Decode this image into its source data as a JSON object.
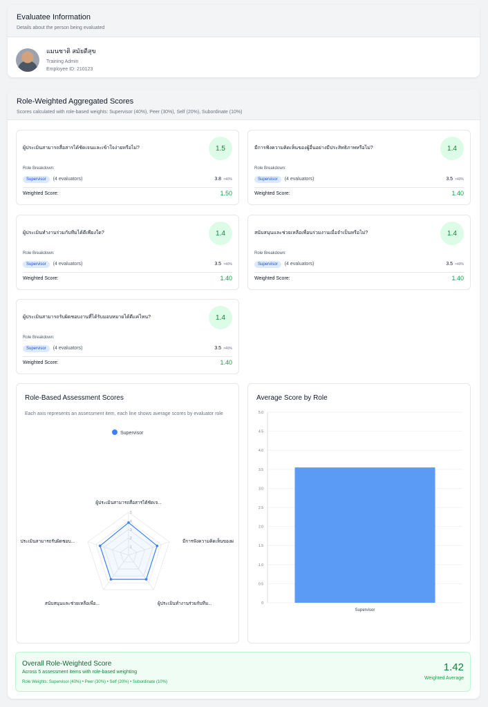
{
  "evaluatee": {
    "title": "Evaluatee Information",
    "subtitle": "Details about the person being evaluated",
    "name": "แมนชาติ สมัยดีสุข",
    "role": "Training Admin",
    "employee_id": "Employee ID: 210123"
  },
  "scores": {
    "title": "Role-Weighted Aggregated Scores",
    "subtitle": "Scores calculated with role-based weights: Supervisor (40%), Peer (30%), Self (20%), Subordinate (10%)",
    "role_breakdown_label": "Role Breakdown:",
    "weighted_label": "Weighted Score:",
    "items": [
      {
        "question": "ผู้ประเมินสามารถสื่อสารได้ชัดเจนและเข้าใจง่ายหรือไม่?",
        "score": "1.5",
        "role": "Supervisor",
        "evaluators": "(4 evaluators)",
        "avg": "3.8",
        "weight": "×40%",
        "weighted": "1.50"
      },
      {
        "question": "มีการฟังความคิดเห็นของผู้อื่นอย่างมีประสิทธิภาพหรือไม่?",
        "score": "1.4",
        "role": "Supervisor",
        "evaluators": "(4 evaluators)",
        "avg": "3.5",
        "weight": "×40%",
        "weighted": "1.40"
      },
      {
        "question": "ผู้ประเมินทำงานร่วมกับทีมได้ดีเพียงใด?",
        "score": "1.4",
        "role": "Supervisor",
        "evaluators": "(4 evaluators)",
        "avg": "3.5",
        "weight": "×40%",
        "weighted": "1.40"
      },
      {
        "question": "สนับสนุนและช่วยเหลือเพื่อนร่วมงานเมื่อจำเป็นหรือไม่?",
        "score": "1.4",
        "role": "Supervisor",
        "evaluators": "(4 evaluators)",
        "avg": "3.5",
        "weight": "×40%",
        "weighted": "1.40"
      },
      {
        "question": "ผู้ประเมินสามารถรับผิดชอบงานที่ได้รับมอบหมายได้ดีแค่ไหน?",
        "score": "1.4",
        "role": "Supervisor",
        "evaluators": "(4 evaluators)",
        "avg": "3.5",
        "weight": "×40%",
        "weighted": "1.40"
      }
    ]
  },
  "radar": {
    "title": "Role-Based Assessment Scores",
    "subtitle": "Each axis represents an assessment item, each line shows average scores by evaluator role",
    "legend": "Supervisor",
    "color": "#3b82f6"
  },
  "bar": {
    "title": "Average Score by Role",
    "color": "#5b9bf5"
  },
  "chart_data": [
    {
      "type": "radar",
      "axes": [
        "ผู้ประเมินสามารถสื่อสารได้ชัดเจ...",
        "มีการฟังความคิดเห็นของผ",
        "ผู้ประเมินทำงานร่วมกับทีม...",
        "สนับสนุนและช่วยเหลือเพื่อ...",
        "ประเมินสามารถรับผิดชอบ..."
      ],
      "ticks": [
        "1",
        "2",
        "3",
        "4",
        "5"
      ],
      "range": [
        0,
        5
      ],
      "series": [
        {
          "name": "Supervisor",
          "values": [
            3.8,
            3.5,
            3.5,
            3.5,
            3.5
          ]
        }
      ]
    },
    {
      "type": "bar",
      "categories": [
        "Supervisor"
      ],
      "values": [
        3.55
      ],
      "ylim": [
        0,
        5
      ],
      "yticks": [
        "0",
        "0.5",
        "1.0",
        "1.5",
        "2.0",
        "2.5",
        "3.0",
        "3.5",
        "4.0",
        "4.5",
        "5.0"
      ],
      "grid": true
    }
  ],
  "overall": {
    "title": "Overall Role-Weighted Score",
    "subtitle": "Across 5 assessment items with role-based weighting",
    "weights": "Role Weights: Supervisor (40%) • Peer (30%) • Self (20%) • Subordinate (10%)",
    "score": "1.42",
    "score_label": "Weighted Average"
  }
}
